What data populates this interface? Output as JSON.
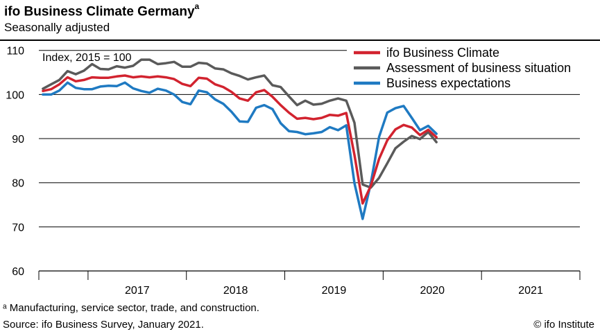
{
  "header": {
    "title": "ifo Business Climate Germany",
    "title_marker": "a",
    "subtitle": "Seasonally adjusted"
  },
  "footer": {
    "footnote": "ᵃ Manufacturing, service sector, trade, and construction.",
    "source": "Source: ifo Business Survey, January 2021.",
    "copyright": "© ifo Institute"
  },
  "chart_data": {
    "type": "line",
    "index_label": "Index, 2015 = 100",
    "ylim": [
      60,
      112
    ],
    "y_ticks": [
      60,
      70,
      80,
      90,
      100,
      110
    ],
    "x_start": "2016-07",
    "x_end": "2021-12",
    "x_ticks": [
      "2017",
      "2018",
      "2019",
      "2020",
      "2021"
    ],
    "legend_position": "top-right",
    "grid": true,
    "series": [
      {
        "name": "ifo Business Climate",
        "color": "#d2232f",
        "values": [
          {
            "x": "2016-07",
            "y": 100.8
          },
          {
            "x": "2016-08",
            "y": 101.2
          },
          {
            "x": "2016-09",
            "y": 102.3
          },
          {
            "x": "2016-10",
            "y": 103.9
          },
          {
            "x": "2016-11",
            "y": 103.0
          },
          {
            "x": "2016-12",
            "y": 103.3
          },
          {
            "x": "2017-01",
            "y": 103.9
          },
          {
            "x": "2017-02",
            "y": 103.8
          },
          {
            "x": "2017-03",
            "y": 103.8
          },
          {
            "x": "2017-04",
            "y": 104.1
          },
          {
            "x": "2017-05",
            "y": 104.3
          },
          {
            "x": "2017-06",
            "y": 103.9
          },
          {
            "x": "2017-07",
            "y": 104.1
          },
          {
            "x": "2017-08",
            "y": 103.9
          },
          {
            "x": "2017-09",
            "y": 104.1
          },
          {
            "x": "2017-10",
            "y": 103.9
          },
          {
            "x": "2017-11",
            "y": 103.5
          },
          {
            "x": "2017-12",
            "y": 102.4
          },
          {
            "x": "2018-01",
            "y": 101.9
          },
          {
            "x": "2018-02",
            "y": 103.8
          },
          {
            "x": "2018-03",
            "y": 103.6
          },
          {
            "x": "2018-04",
            "y": 102.3
          },
          {
            "x": "2018-05",
            "y": 101.7
          },
          {
            "x": "2018-06",
            "y": 100.6
          },
          {
            "x": "2018-07",
            "y": 99.1
          },
          {
            "x": "2018-08",
            "y": 98.6
          },
          {
            "x": "2018-09",
            "y": 100.5
          },
          {
            "x": "2018-10",
            "y": 101.0
          },
          {
            "x": "2018-11",
            "y": 99.5
          },
          {
            "x": "2018-12",
            "y": 97.6
          },
          {
            "x": "2019-01",
            "y": 95.9
          },
          {
            "x": "2019-02",
            "y": 94.5
          },
          {
            "x": "2019-03",
            "y": 94.7
          },
          {
            "x": "2019-04",
            "y": 94.4
          },
          {
            "x": "2019-05",
            "y": 94.7
          },
          {
            "x": "2019-06",
            "y": 95.4
          },
          {
            "x": "2019-07",
            "y": 95.2
          },
          {
            "x": "2019-08",
            "y": 95.8
          },
          {
            "x": "2019-09",
            "y": 86.3
          },
          {
            "x": "2019-10",
            "y": 75.3
          },
          {
            "x": "2019-11",
            "y": 79.3
          },
          {
            "x": "2019-12",
            "y": 85.4
          },
          {
            "x": "2020-01",
            "y": 89.6
          },
          {
            "x": "2020-02",
            "y": 92.1
          },
          {
            "x": "2020-03",
            "y": 93.1
          },
          {
            "x": "2020-04",
            "y": 92.5
          },
          {
            "x": "2020-05",
            "y": 90.8
          },
          {
            "x": "2020-06",
            "y": 92.0
          },
          {
            "x": "2020-07",
            "y": 90.3
          }
        ]
      },
      {
        "name": "Assessment of business situation",
        "color": "#5a5a5a",
        "values": [
          {
            "x": "2016-07",
            "y": 101.3
          },
          {
            "x": "2016-08",
            "y": 102.3
          },
          {
            "x": "2016-09",
            "y": 103.3
          },
          {
            "x": "2016-10",
            "y": 105.3
          },
          {
            "x": "2016-11",
            "y": 104.6
          },
          {
            "x": "2016-12",
            "y": 105.4
          },
          {
            "x": "2017-01",
            "y": 106.9
          },
          {
            "x": "2017-02",
            "y": 105.8
          },
          {
            "x": "2017-03",
            "y": 105.7
          },
          {
            "x": "2017-04",
            "y": 106.4
          },
          {
            "x": "2017-05",
            "y": 106.1
          },
          {
            "x": "2017-06",
            "y": 106.5
          },
          {
            "x": "2017-07",
            "y": 107.9
          },
          {
            "x": "2017-08",
            "y": 107.9
          },
          {
            "x": "2017-09",
            "y": 106.9
          },
          {
            "x": "2017-10",
            "y": 107.1
          },
          {
            "x": "2017-11",
            "y": 107.4
          },
          {
            "x": "2017-12",
            "y": 106.3
          },
          {
            "x": "2018-01",
            "y": 106.3
          },
          {
            "x": "2018-02",
            "y": 107.2
          },
          {
            "x": "2018-03",
            "y": 107.0
          },
          {
            "x": "2018-04",
            "y": 105.9
          },
          {
            "x": "2018-05",
            "y": 105.7
          },
          {
            "x": "2018-06",
            "y": 104.8
          },
          {
            "x": "2018-07",
            "y": 104.2
          },
          {
            "x": "2018-08",
            "y": 103.4
          },
          {
            "x": "2018-09",
            "y": 103.9
          },
          {
            "x": "2018-10",
            "y": 104.3
          },
          {
            "x": "2018-11",
            "y": 102.1
          },
          {
            "x": "2018-12",
            "y": 101.7
          },
          {
            "x": "2019-01",
            "y": 99.6
          },
          {
            "x": "2019-02",
            "y": 97.6
          },
          {
            "x": "2019-03",
            "y": 98.6
          },
          {
            "x": "2019-04",
            "y": 97.7
          },
          {
            "x": "2019-05",
            "y": 97.9
          },
          {
            "x": "2019-06",
            "y": 98.6
          },
          {
            "x": "2019-07",
            "y": 99.1
          },
          {
            "x": "2019-08",
            "y": 98.6
          },
          {
            "x": "2019-09",
            "y": 93.6
          },
          {
            "x": "2019-10",
            "y": 79.6
          },
          {
            "x": "2019-11",
            "y": 78.9
          },
          {
            "x": "2019-12",
            "y": 81.1
          },
          {
            "x": "2020-01",
            "y": 84.4
          },
          {
            "x": "2020-02",
            "y": 87.8
          },
          {
            "x": "2020-03",
            "y": 89.3
          },
          {
            "x": "2020-04",
            "y": 90.6
          },
          {
            "x": "2020-05",
            "y": 89.9
          },
          {
            "x": "2020-06",
            "y": 91.5
          },
          {
            "x": "2020-07",
            "y": 89.2
          }
        ]
      },
      {
        "name": "Business expectations",
        "color": "#1f7ac2",
        "values": [
          {
            "x": "2016-07",
            "y": 100.0
          },
          {
            "x": "2016-08",
            "y": 100.0
          },
          {
            "x": "2016-09",
            "y": 100.9
          },
          {
            "x": "2016-10",
            "y": 102.7
          },
          {
            "x": "2016-11",
            "y": 101.5
          },
          {
            "x": "2016-12",
            "y": 101.2
          },
          {
            "x": "2017-01",
            "y": 101.2
          },
          {
            "x": "2017-02",
            "y": 101.8
          },
          {
            "x": "2017-03",
            "y": 102.0
          },
          {
            "x": "2017-04",
            "y": 101.9
          },
          {
            "x": "2017-05",
            "y": 102.7
          },
          {
            "x": "2017-06",
            "y": 101.4
          },
          {
            "x": "2017-07",
            "y": 100.8
          },
          {
            "x": "2017-08",
            "y": 100.4
          },
          {
            "x": "2017-09",
            "y": 101.3
          },
          {
            "x": "2017-10",
            "y": 100.9
          },
          {
            "x": "2017-11",
            "y": 100.0
          },
          {
            "x": "2017-12",
            "y": 98.3
          },
          {
            "x": "2018-01",
            "y": 97.8
          },
          {
            "x": "2018-02",
            "y": 100.9
          },
          {
            "x": "2018-03",
            "y": 100.5
          },
          {
            "x": "2018-04",
            "y": 98.9
          },
          {
            "x": "2018-05",
            "y": 97.9
          },
          {
            "x": "2018-06",
            "y": 96.1
          },
          {
            "x": "2018-07",
            "y": 93.9
          },
          {
            "x": "2018-08",
            "y": 93.8
          },
          {
            "x": "2018-09",
            "y": 97.0
          },
          {
            "x": "2018-10",
            "y": 97.6
          },
          {
            "x": "2018-11",
            "y": 96.7
          },
          {
            "x": "2018-12",
            "y": 93.5
          },
          {
            "x": "2019-01",
            "y": 91.7
          },
          {
            "x": "2019-02",
            "y": 91.5
          },
          {
            "x": "2019-03",
            "y": 91.0
          },
          {
            "x": "2019-04",
            "y": 91.2
          },
          {
            "x": "2019-05",
            "y": 91.5
          },
          {
            "x": "2019-06",
            "y": 92.6
          },
          {
            "x": "2019-07",
            "y": 91.9
          },
          {
            "x": "2019-08",
            "y": 93.0
          },
          {
            "x": "2019-09",
            "y": 79.9
          },
          {
            "x": "2019-10",
            "y": 71.8
          },
          {
            "x": "2019-11",
            "y": 79.9
          },
          {
            "x": "2019-12",
            "y": 90.4
          },
          {
            "x": "2020-01",
            "y": 95.9
          },
          {
            "x": "2020-02",
            "y": 96.9
          },
          {
            "x": "2020-03",
            "y": 97.4
          },
          {
            "x": "2020-04",
            "y": 94.7
          },
          {
            "x": "2020-05",
            "y": 91.9
          },
          {
            "x": "2020-06",
            "y": 92.9
          },
          {
            "x": "2020-07",
            "y": 91.1
          }
        ]
      }
    ]
  }
}
